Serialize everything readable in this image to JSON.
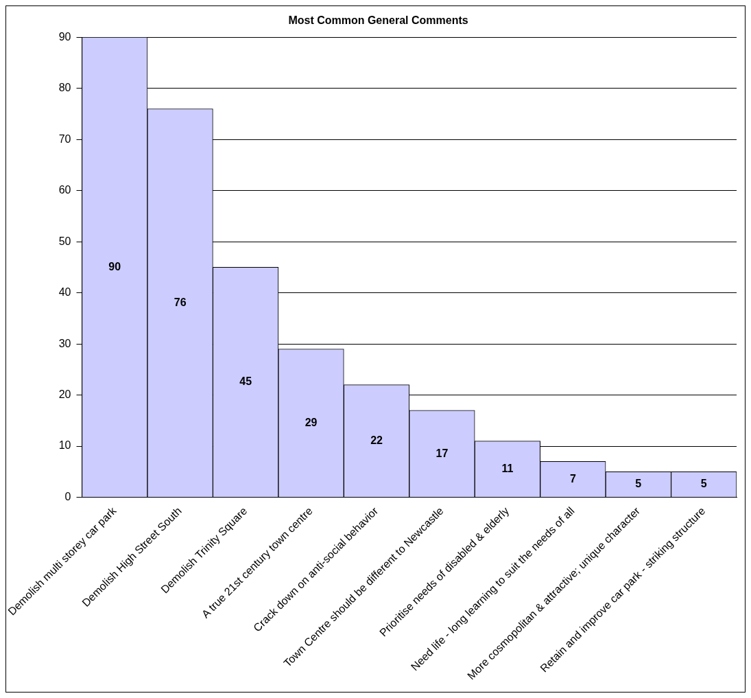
{
  "chart_data": {
    "type": "bar",
    "title": "Most Common General Comments",
    "categories": [
      "Demolish multi storey car park",
      "Demolish High Street South",
      "Demolish Trinity Square",
      "A true 21st century town centre",
      "Crack down on anti-social behavior",
      "Town Centre should be different to Newcastle",
      "Prioritise needs of disabled & elderly",
      "Need life - long learning to suit the needs of all",
      "More cosmopolitan & attractive; unique character",
      "Retain and improve car park - striking structure"
    ],
    "values": [
      90,
      76,
      45,
      29,
      22,
      17,
      11,
      7,
      5,
      5
    ],
    "color": "#ccccff",
    "ylim": [
      0,
      90
    ],
    "yticks": [
      0,
      10,
      20,
      30,
      40,
      50,
      60,
      70,
      80,
      90
    ],
    "grid": "y",
    "data_labels": true,
    "legend": false
  }
}
